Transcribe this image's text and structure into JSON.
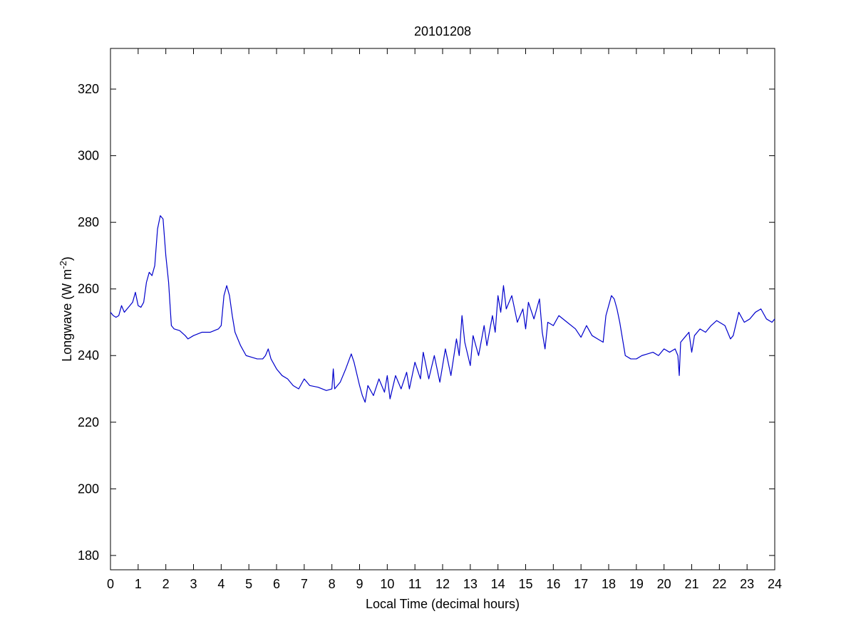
{
  "chart_data": {
    "type": "line",
    "title": "20101208",
    "xlabel": "Local Time (decimal hours)",
    "ylabel": {
      "text": "Longwave (W m",
      "superscript": "-2",
      "suffix": ")"
    },
    "color": "#0000cc",
    "xlim": [
      0,
      24
    ],
    "xticks": [
      0,
      1,
      2,
      3,
      4,
      5,
      6,
      7,
      8,
      9,
      10,
      11,
      12,
      13,
      14,
      15,
      16,
      17,
      18,
      19,
      20,
      21,
      22,
      23,
      24
    ],
    "ylim": [
      175.7,
      332.2
    ],
    "yticks": [
      180,
      200,
      220,
      240,
      260,
      280,
      300,
      320
    ],
    "x": [
      0,
      0.1,
      0.2,
      0.3,
      0.4,
      0.5,
      0.6,
      0.7,
      0.8,
      0.9,
      1.0,
      1.1,
      1.2,
      1.3,
      1.4,
      1.5,
      1.6,
      1.7,
      1.8,
      1.9,
      2.0,
      2.1,
      2.2,
      2.3,
      2.5,
      2.7,
      2.8,
      3.0,
      3.3,
      3.6,
      3.9,
      4.0,
      4.1,
      4.2,
      4.3,
      4.4,
      4.5,
      4.7,
      4.9,
      5.1,
      5.3,
      5.5,
      5.6,
      5.7,
      5.8,
      6.0,
      6.2,
      6.4,
      6.6,
      6.8,
      7.0,
      7.2,
      7.5,
      7.8,
      8.0,
      8.05,
      8.1,
      8.3,
      8.5,
      8.7,
      8.8,
      9.0,
      9.1,
      9.2,
      9.3,
      9.5,
      9.7,
      9.9,
      10.0,
      10.1,
      10.3,
      10.5,
      10.7,
      10.8,
      11.0,
      11.2,
      11.3,
      11.5,
      11.7,
      11.9,
      12.1,
      12.3,
      12.5,
      12.6,
      12.7,
      12.8,
      13.0,
      13.1,
      13.3,
      13.5,
      13.6,
      13.8,
      13.9,
      14.0,
      14.1,
      14.2,
      14.3,
      14.5,
      14.7,
      14.9,
      15.0,
      15.1,
      15.3,
      15.5,
      15.6,
      15.7,
      15.8,
      16.0,
      16.2,
      16.5,
      16.8,
      17.0,
      17.2,
      17.4,
      17.6,
      17.8,
      17.9,
      18.0,
      18.1,
      18.2,
      18.3,
      18.4,
      18.5,
      18.6,
      18.8,
      19.0,
      19.2,
      19.4,
      19.6,
      19.8,
      20.0,
      20.2,
      20.4,
      20.5,
      20.55,
      20.6,
      20.8,
      20.9,
      21.0,
      21.1,
      21.3,
      21.5,
      21.7,
      21.9,
      22.2,
      22.4,
      22.5,
      22.7,
      22.9,
      23.1,
      23.3,
      23.5,
      23.7,
      23.9,
      24.0
    ],
    "values": [
      253,
      252,
      251.5,
      252,
      255,
      253,
      254,
      255,
      256,
      259,
      255,
      254.5,
      256,
      262,
      265,
      264,
      267,
      278,
      282,
      281,
      270,
      262,
      249,
      248,
      247.5,
      246,
      245,
      246,
      247,
      247,
      248,
      249,
      258,
      261,
      258,
      252,
      247,
      243,
      240,
      239.5,
      239,
      239,
      240,
      242,
      239,
      236,
      234,
      233,
      231,
      230,
      233,
      231,
      230.5,
      229.5,
      230,
      236,
      230,
      232,
      236,
      240.5,
      238,
      231,
      228,
      226,
      231,
      228,
      233,
      229,
      234,
      227,
      234,
      230,
      235,
      230,
      238,
      233,
      241,
      233,
      240,
      232,
      242,
      234,
      245,
      240,
      252,
      244,
      237,
      246,
      240,
      249,
      243,
      252,
      247,
      258,
      253,
      261,
      254,
      258,
      250,
      254,
      248,
      256,
      251,
      257,
      247,
      242,
      250,
      249,
      252,
      250,
      248,
      245.5,
      249,
      246,
      245,
      244,
      252,
      255,
      258,
      257,
      254,
      250,
      245,
      240,
      239,
      239,
      240,
      240.5,
      241,
      240,
      242,
      241,
      242,
      240,
      234,
      244,
      246,
      247,
      241,
      246,
      248,
      247,
      249,
      250.5,
      249,
      245,
      246,
      253,
      250,
      251,
      253,
      254,
      251,
      250,
      251
    ]
  }
}
